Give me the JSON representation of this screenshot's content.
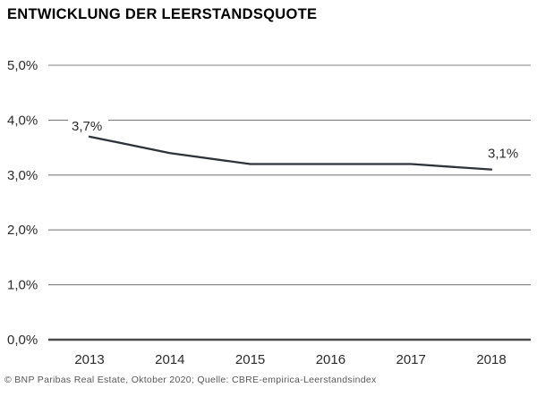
{
  "title": "ENTWICKLUNG DER LEERSTANDSQUOTE",
  "footer": "© BNP Paribas Real Estate, Oktober 2020; Quelle: CBRE-empirica-Leerstandsindex",
  "colors": {
    "line": "#2d3339",
    "grid": "#7f7f7f",
    "axis": "#4a4a4a",
    "tick_text": "#2b2b2b",
    "title_text": "#000000",
    "footer_text": "#58585a",
    "background": "#ffffff"
  },
  "chart_data": {
    "type": "line",
    "title": "ENTWICKLUNG DER LEERSTANDSQUOTE",
    "categories": [
      "2013",
      "2014",
      "2015",
      "2016",
      "2017",
      "2018"
    ],
    "values": [
      3.7,
      3.4,
      3.2,
      3.2,
      3.2,
      3.1
    ],
    "xlabel": "",
    "ylabel": "",
    "ylim": [
      0,
      5
    ],
    "grid": true,
    "legend": false,
    "y_ticks": [
      {
        "value": 5,
        "label": "5,0%"
      },
      {
        "value": 4,
        "label": "4,0%"
      },
      {
        "value": 3,
        "label": "3,0%"
      },
      {
        "value": 2,
        "label": "2,0%"
      },
      {
        "value": 1,
        "label": "1,0%"
      },
      {
        "value": 0,
        "label": "0,0%"
      }
    ],
    "point_labels": [
      {
        "index": 0,
        "text": "3,7%"
      },
      {
        "index": 5,
        "text": "3,1%"
      }
    ]
  }
}
